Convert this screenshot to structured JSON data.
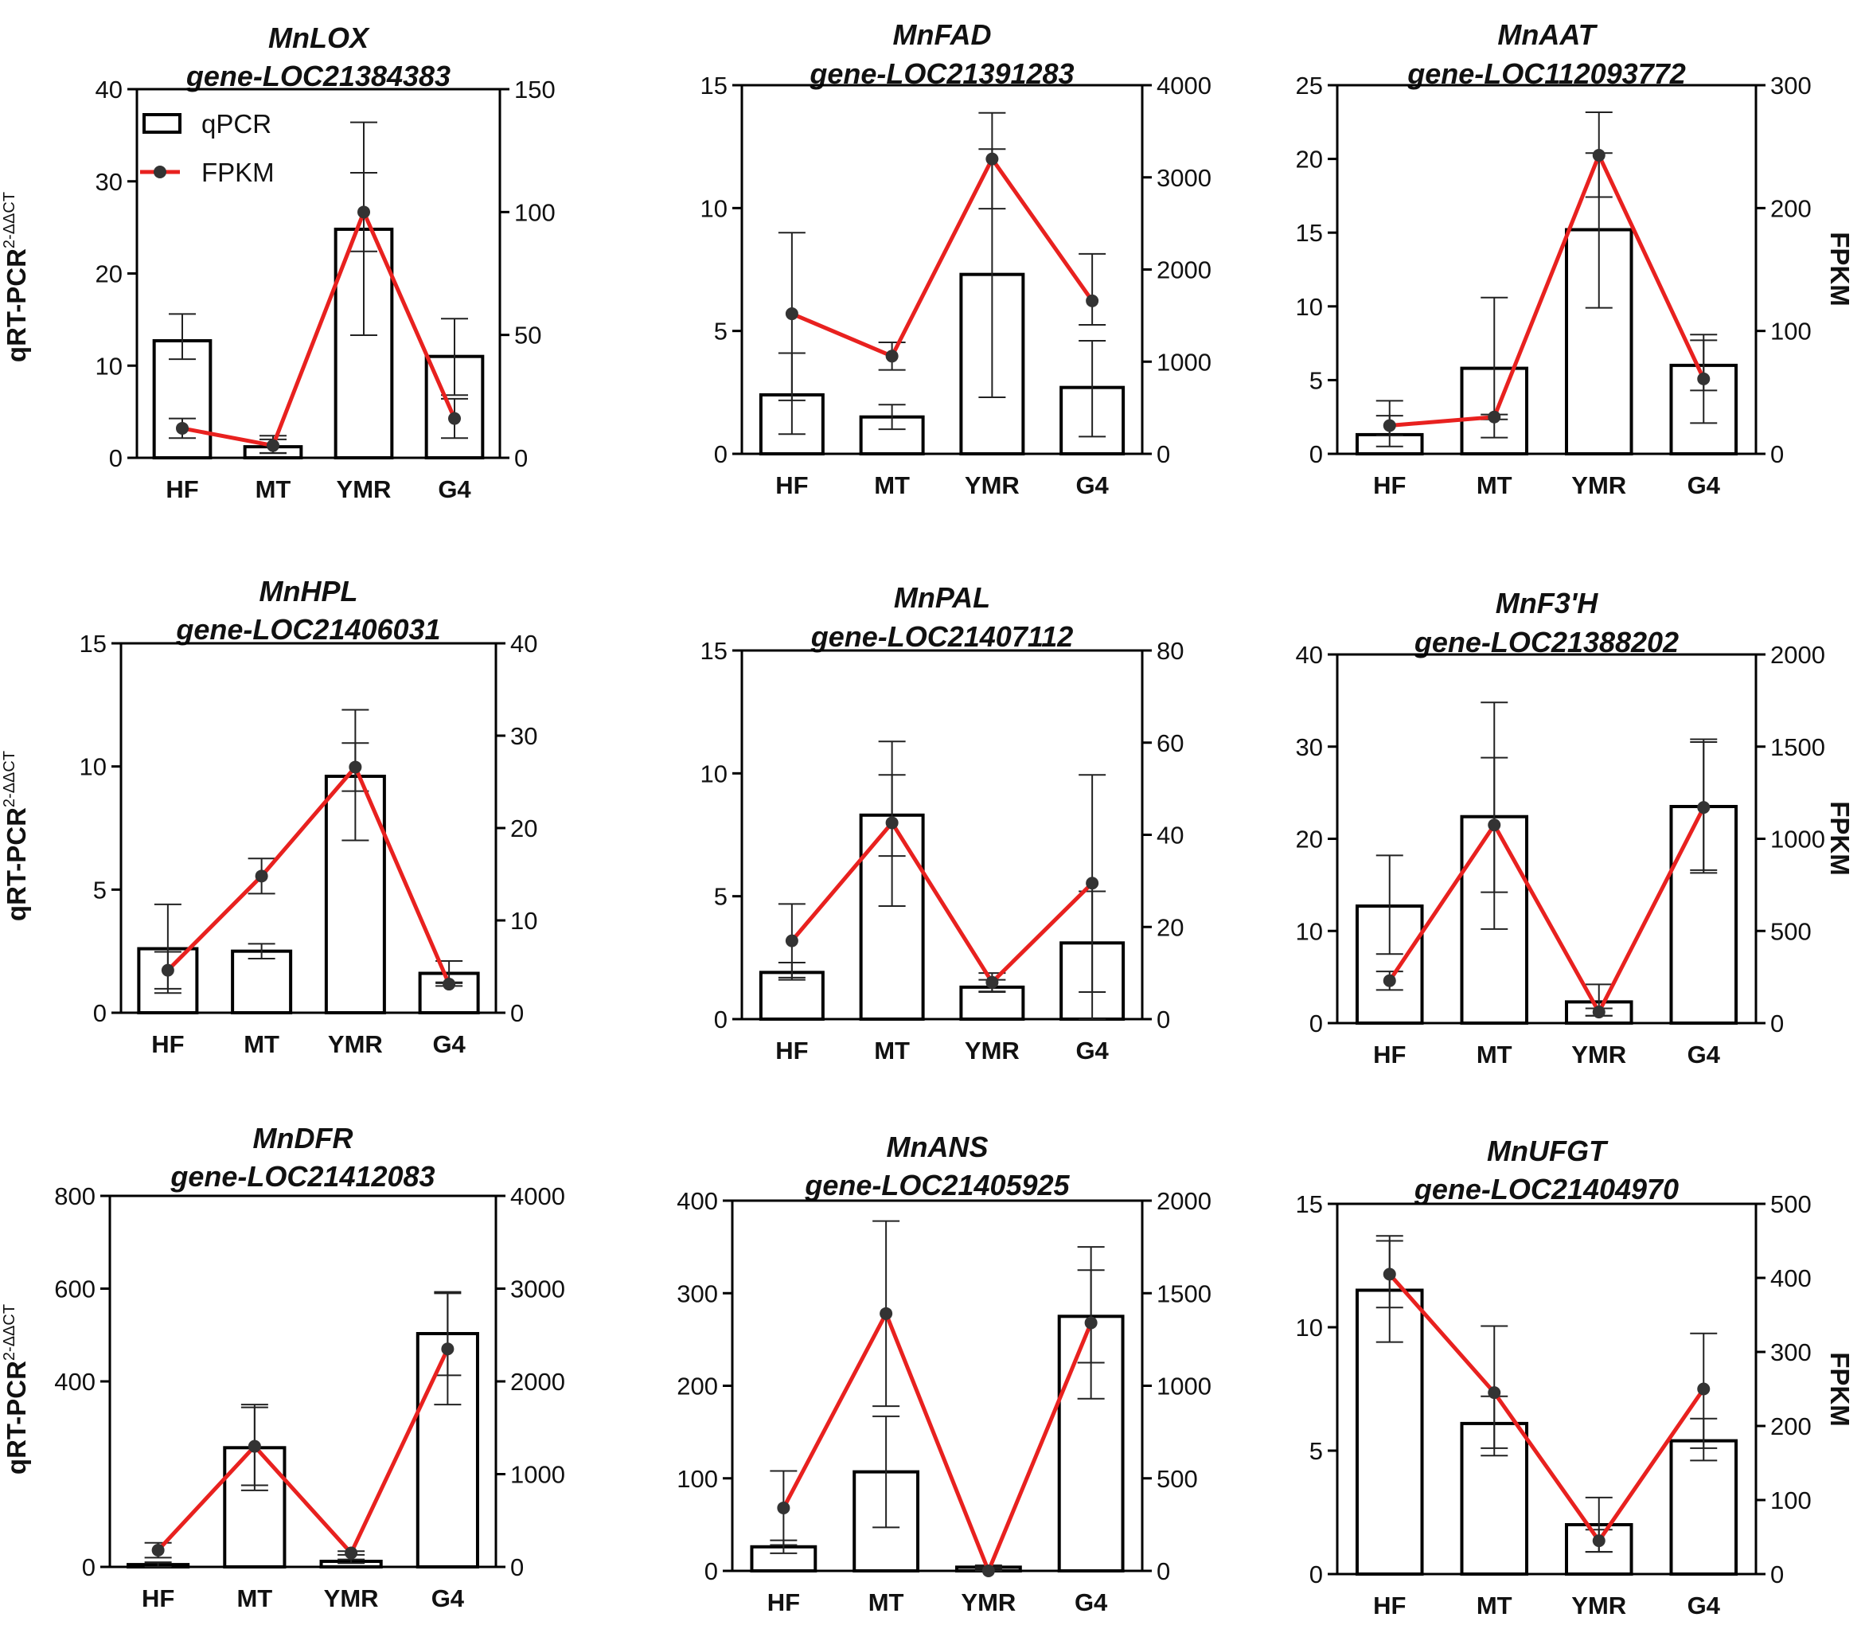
{
  "figure": {
    "left_axis_label": "qRT-PCR",
    "left_axis_superscript": "2-ΔΔCT",
    "right_axis_label": "FPKM",
    "legend": {
      "bar": "qPCR",
      "line": "FPKM"
    },
    "colors": {
      "line": "#e8211f",
      "bar_fill": "#ffffff",
      "bar_stroke": "#000000",
      "marker": "#333333"
    }
  },
  "chart_data": [
    {
      "type": "bar",
      "title": "MnLOX",
      "subtitle": "gene-LOC21384383",
      "categories": [
        "HF",
        "MT",
        "YMR",
        "G4"
      ],
      "ylim": [
        0,
        40
      ],
      "yticks": [
        "0",
        "10",
        "20",
        "30",
        "40"
      ],
      "y2lim": [
        0,
        150
      ],
      "y2ticks": [
        "0",
        "50",
        "100",
        "150"
      ],
      "series": [
        {
          "name": "qPCR",
          "axis": "left",
          "values": [
            12.7,
            1.2,
            24.8,
            11.0
          ],
          "err_low": [
            10.7,
            0.5,
            13.3,
            6.8
          ],
          "err_high": [
            15.6,
            2.0,
            36.4,
            15.1
          ]
        },
        {
          "name": "FPKM",
          "axis": "right",
          "values": [
            12,
            5,
            100,
            16
          ],
          "err_low": [
            8,
            2,
            84,
            8
          ],
          "err_high": [
            16,
            9,
            116,
            24
          ]
        }
      ]
    },
    {
      "type": "bar",
      "title": "MnFAD",
      "subtitle": "gene-LOC21391283",
      "categories": [
        "HF",
        "MT",
        "YMR",
        "G4"
      ],
      "ylim": [
        0,
        15
      ],
      "yticks": [
        "0",
        "5",
        "10",
        "15"
      ],
      "y2lim": [
        0,
        4000
      ],
      "y2ticks": [
        "0",
        "1000",
        "2000",
        "3000",
        "4000"
      ],
      "series": [
        {
          "name": "qPCR",
          "axis": "left",
          "values": [
            2.4,
            1.5,
            7.3,
            2.7
          ],
          "err_low": [
            0.8,
            1.0,
            2.3,
            0.7
          ],
          "err_high": [
            4.1,
            2.0,
            12.4,
            4.6
          ]
        },
        {
          "name": "FPKM",
          "axis": "right",
          "values": [
            1520,
            1060,
            3200,
            1660
          ],
          "err_low": [
            580,
            910,
            2660,
            1400
          ],
          "err_high": [
            2400,
            1210,
            3700,
            2170
          ]
        }
      ]
    },
    {
      "type": "bar",
      "title": "MnAAT",
      "subtitle": "gene-LOC112093772",
      "categories": [
        "HF",
        "MT",
        "YMR",
        "G4"
      ],
      "ylim": [
        0,
        25
      ],
      "yticks": [
        "0",
        "5",
        "10",
        "15",
        "20",
        "25"
      ],
      "y2lim": [
        0,
        300
      ],
      "y2ticks": [
        "0",
        "100",
        "200",
        "300"
      ],
      "series": [
        {
          "name": "qPCR",
          "axis": "left",
          "values": [
            1.3,
            5.8,
            15.2,
            6.0
          ],
          "err_low": [
            0.5,
            1.1,
            9.9,
            4.3
          ],
          "err_high": [
            3.6,
            10.6,
            20.4,
            7.7
          ]
        },
        {
          "name": "FPKM",
          "axis": "right",
          "values": [
            23,
            30,
            243,
            61
          ],
          "err_low": [
            15,
            28,
            209,
            25
          ],
          "err_high": [
            31,
            32,
            278,
            97
          ]
        }
      ]
    },
    {
      "type": "bar",
      "title": "MnHPL",
      "subtitle": "gene-LOC21406031",
      "categories": [
        "HF",
        "MT",
        "YMR",
        "G4"
      ],
      "ylim": [
        0,
        15
      ],
      "yticks": [
        "0",
        "5",
        "10",
        "15"
      ],
      "y2lim": [
        0,
        40
      ],
      "y2ticks": [
        "0",
        "10",
        "20",
        "30",
        "40"
      ],
      "series": [
        {
          "name": "qPCR",
          "axis": "left",
          "values": [
            2.6,
            2.5,
            9.6,
            1.6
          ],
          "err_low": [
            0.8,
            2.2,
            7.0,
            1.2
          ],
          "err_high": [
            4.4,
            2.8,
            12.3,
            2.1
          ]
        },
        {
          "name": "FPKM",
          "axis": "right",
          "values": [
            4.6,
            14.8,
            26.6,
            3.1
          ],
          "err_low": [
            2.6,
            12.9,
            24.0,
            2.9
          ],
          "err_high": [
            6.6,
            16.7,
            29.2,
            3.3
          ]
        }
      ]
    },
    {
      "type": "bar",
      "title": "MnPAL",
      "subtitle": "gene-LOC21407112",
      "categories": [
        "HF",
        "MT",
        "YMR",
        "G4"
      ],
      "ylim": [
        0,
        15
      ],
      "yticks": [
        "0",
        "5",
        "10",
        "15"
      ],
      "y2lim": [
        0,
        80
      ],
      "y2ticks": [
        "0",
        "20",
        "40",
        "60",
        "80"
      ],
      "series": [
        {
          "name": "qPCR",
          "axis": "left",
          "values": [
            1.9,
            8.3,
            1.3,
            3.1
          ],
          "err_low": [
            1.6,
            4.6,
            1.1,
            1.1
          ],
          "err_high": [
            2.3,
            11.3,
            1.6,
            5.2
          ]
        },
        {
          "name": "FPKM",
          "axis": "right",
          "values": [
            17,
            42.6,
            8,
            29.5
          ],
          "err_low": [
            9,
            35.4,
            6,
            0
          ],
          "err_high": [
            25,
            53,
            10,
            53
          ]
        }
      ]
    },
    {
      "type": "bar",
      "title": "MnF3'H",
      "subtitle": "gene-LOC21388202",
      "categories": [
        "HF",
        "MT",
        "YMR",
        "G4"
      ],
      "ylim": [
        0,
        40
      ],
      "yticks": [
        "0",
        "10",
        "20",
        "30",
        "40"
      ],
      "y2lim": [
        0,
        2000
      ],
      "y2ticks": [
        "0",
        "500",
        "1000",
        "1500",
        "2000"
      ],
      "series": [
        {
          "name": "qPCR",
          "axis": "left",
          "values": [
            12.7,
            22.4,
            2.3,
            23.5
          ],
          "err_low": [
            7.5,
            10.2,
            0.8,
            16.3
          ],
          "err_high": [
            18.2,
            34.8,
            4.2,
            30.5
          ]
        },
        {
          "name": "FPKM",
          "axis": "right",
          "values": [
            230,
            1075,
            60,
            1170
          ],
          "err_low": [
            180,
            710,
            40,
            830
          ],
          "err_high": [
            280,
            1440,
            80,
            1540
          ]
        }
      ]
    },
    {
      "type": "bar",
      "title": "MnDFR",
      "subtitle": "gene-LOC21412083",
      "categories": [
        "HF",
        "MT",
        "YMR",
        "G4"
      ],
      "ylim": [
        0,
        800
      ],
      "yticks": [
        "0",
        "400",
        "600",
        "800"
      ],
      "y2lim": [
        0,
        4000
      ],
      "y2ticks": [
        "0",
        "1000",
        "2000",
        "3000",
        "4000"
      ],
      "series": [
        {
          "name": "qPCR",
          "axis": "left",
          "values": [
            5,
            257,
            12,
            503
          ],
          "err_low": [
            0,
            165,
            8,
            413
          ],
          "err_high": [
            10,
            350,
            16,
            593
          ]
        },
        {
          "name": "FPKM",
          "axis": "right",
          "values": [
            180,
            1300,
            150,
            2350
          ],
          "err_low": [
            100,
            880,
            130,
            1750
          ],
          "err_high": [
            260,
            1720,
            170,
            2950
          ]
        }
      ]
    },
    {
      "type": "bar",
      "title": "MnANS",
      "subtitle": "gene-LOC21405925",
      "categories": [
        "HF",
        "MT",
        "YMR",
        "G4"
      ],
      "ylim": [
        0,
        400
      ],
      "yticks": [
        "0",
        "100",
        "200",
        "300",
        "400"
      ],
      "y2lim": [
        0,
        2000
      ],
      "y2ticks": [
        "0",
        "500",
        "1000",
        "1500",
        "2000"
      ],
      "series": [
        {
          "name": "qPCR",
          "axis": "left",
          "values": [
            26,
            107,
            4,
            275
          ],
          "err_low": [
            19,
            47,
            2,
            225
          ],
          "err_high": [
            33,
            167,
            6,
            325
          ]
        },
        {
          "name": "FPKM",
          "axis": "right",
          "values": [
            340,
            1390,
            0,
            1340
          ],
          "err_low": [
            140,
            890,
            0,
            930
          ],
          "err_high": [
            540,
            1890,
            20,
            1750
          ]
        }
      ]
    },
    {
      "type": "bar",
      "title": "MnUFGT",
      "subtitle": "gene-LOC21404970",
      "categories": [
        "HF",
        "MT",
        "YMR",
        "G4"
      ],
      "ylim": [
        0,
        15
      ],
      "yticks": [
        "0",
        "5",
        "10",
        "15"
      ],
      "y2lim": [
        0,
        500
      ],
      "y2ticks": [
        "0",
        "100",
        "200",
        "300",
        "400",
        "500"
      ],
      "series": [
        {
          "name": "qPCR",
          "axis": "left",
          "values": [
            11.5,
            6.1,
            2.0,
            5.4
          ],
          "err_low": [
            9.4,
            5.1,
            0.9,
            4.6
          ],
          "err_high": [
            13.7,
            7.2,
            3.1,
            6.3
          ]
        },
        {
          "name": "FPKM",
          "axis": "right",
          "values": [
            405,
            245,
            45,
            250
          ],
          "err_low": [
            360,
            160,
            30,
            170
          ],
          "err_high": [
            450,
            335,
            60,
            325
          ]
        }
      ]
    }
  ]
}
